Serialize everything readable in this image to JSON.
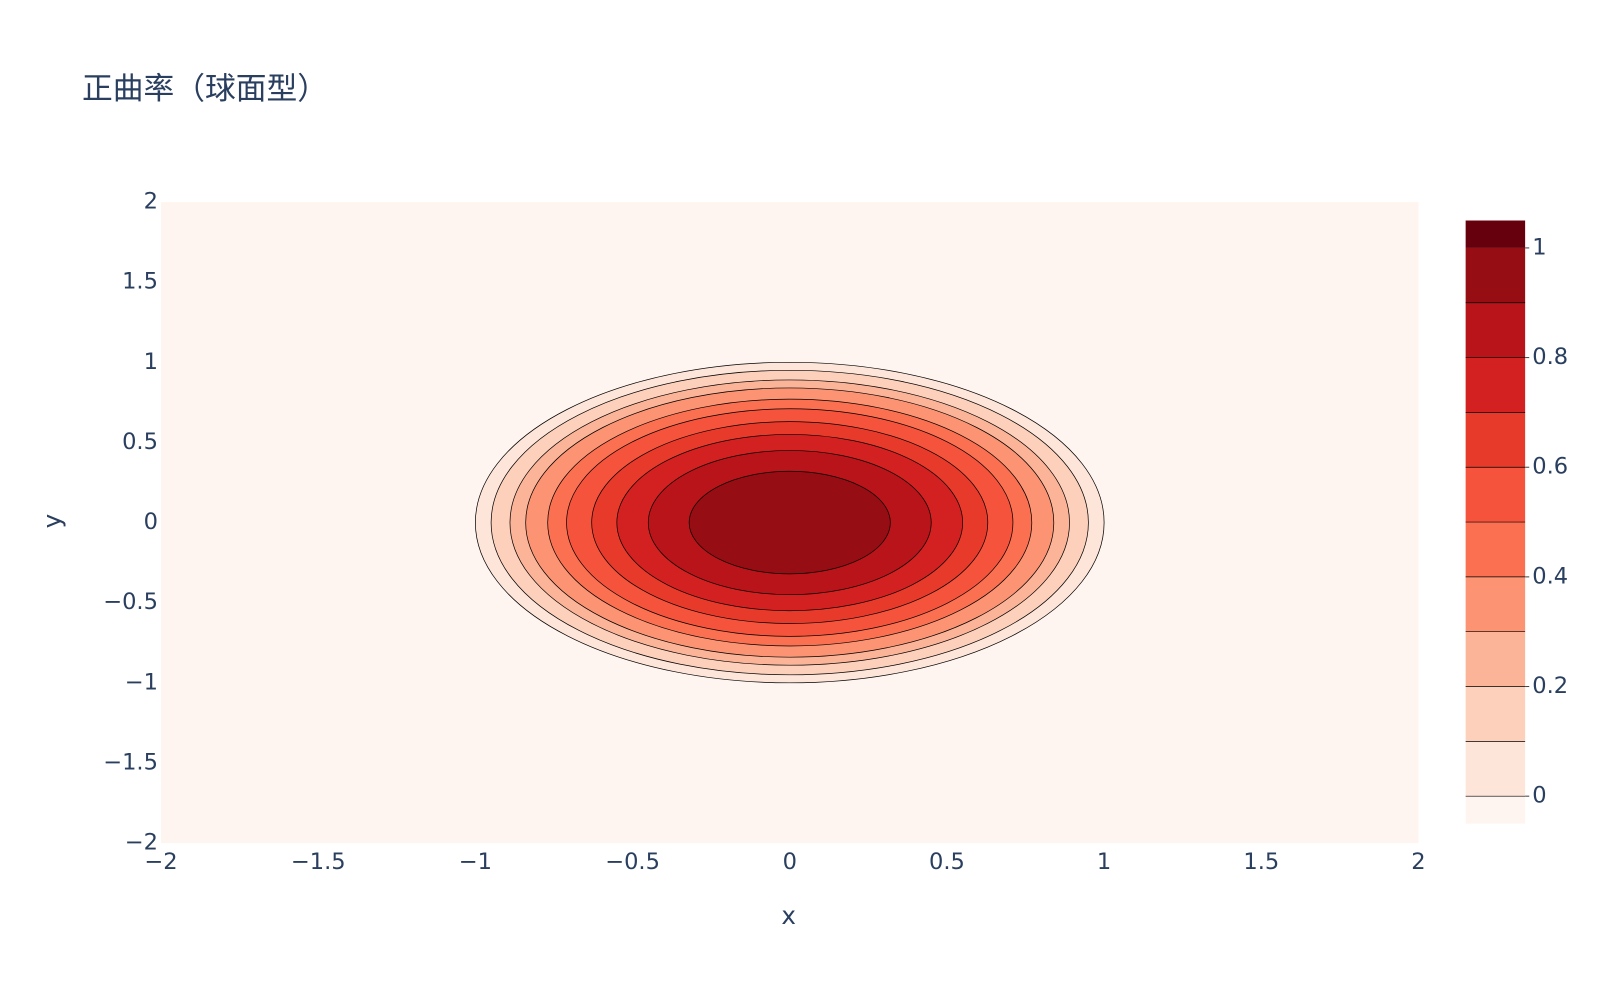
{
  "chart_data": {
    "type": "contour",
    "title": "正曲率（球面型）",
    "x_label": "x",
    "y_label": "y",
    "xlim": [
      -2,
      2
    ],
    "ylim": [
      -2,
      2
    ],
    "xticks": [
      {
        "value": -2,
        "label": "−2"
      },
      {
        "value": -1.5,
        "label": "−1.5"
      },
      {
        "value": -1,
        "label": "−1"
      },
      {
        "value": -0.5,
        "label": "−0.5"
      },
      0,
      0.5,
      1,
      1.5,
      2
    ],
    "yticks": [
      {
        "value": -2,
        "label": "−2"
      },
      {
        "value": -1.5,
        "label": "−1.5"
      },
      {
        "value": -1,
        "label": "−1"
      },
      {
        "value": -0.5,
        "label": "−0.5"
      },
      0,
      0.5,
      1,
      1.5,
      2
    ],
    "background_color": "#fff5f0",
    "contours": [
      {
        "level": 0,
        "radius": 1,
        "color": "#fee5d9"
      },
      {
        "level": 0.1,
        "radius": 0.95,
        "color": "#fdd0bc"
      },
      {
        "level": 0.2,
        "radius": 0.89,
        "color": "#fcb499"
      },
      {
        "level": 0.3,
        "radius": 0.84,
        "color": "#fc9474"
      },
      {
        "level": 0.4,
        "radius": 0.77,
        "color": "#fb7050"
      },
      {
        "level": 0.5,
        "radius": 0.71,
        "color": "#f5533b"
      },
      {
        "level": 0.6,
        "radius": 0.63,
        "color": "#e83a2b"
      },
      {
        "level": 0.7,
        "radius": 0.55,
        "color": "#d32020"
      },
      {
        "level": 0.8,
        "radius": 0.45,
        "color": "#b81419"
      },
      {
        "level": 0.9,
        "radius": 0.32,
        "color": "#960d14"
      }
    ],
    "colorbar": {
      "zlim": [
        -0.05,
        1.05
      ],
      "ticks": [
        0,
        0.2,
        0.4,
        0.6,
        0.8,
        1
      ],
      "top_color": "#67000d"
    }
  }
}
